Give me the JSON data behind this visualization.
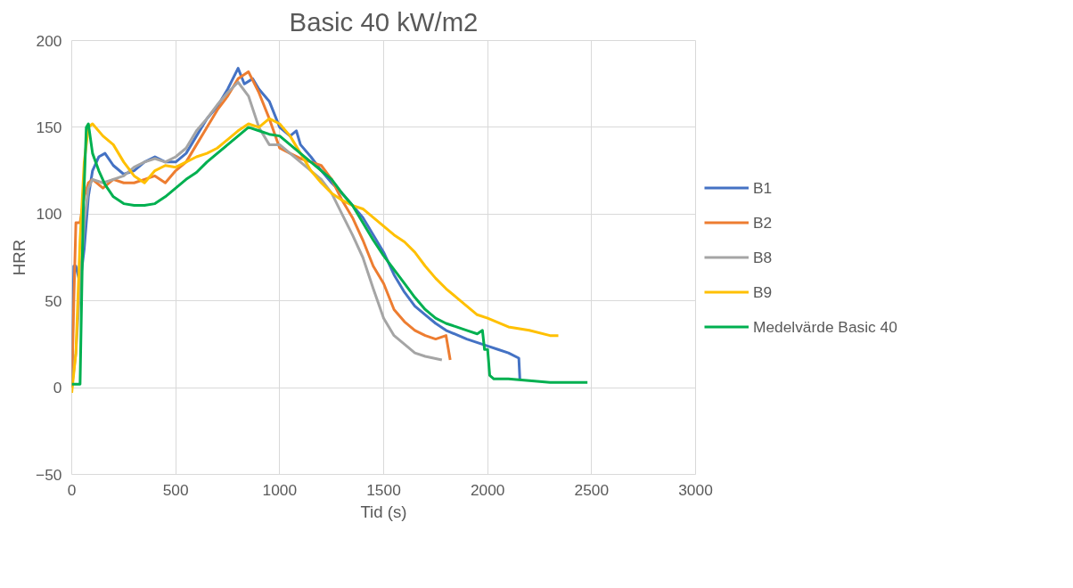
{
  "chart_data": {
    "type": "line",
    "title": "Basic 40 kW/m2",
    "xlabel": "Tid (s)",
    "ylabel": "HRR",
    "xlim": [
      0,
      3000
    ],
    "ylim": [
      -50,
      200
    ],
    "xticks": [
      0,
      500,
      1000,
      1500,
      2000,
      2500,
      3000
    ],
    "yticks": [
      -50,
      0,
      50,
      100,
      150,
      200
    ],
    "grid": true,
    "legend": "right",
    "line_style": "solid",
    "series": [
      {
        "name": "B1",
        "color": "#4472c4",
        "x": [
          0,
          10,
          20,
          40,
          60,
          80,
          100,
          130,
          160,
          200,
          250,
          300,
          350,
          400,
          450,
          500,
          550,
          600,
          650,
          700,
          750,
          800,
          830,
          870,
          900,
          950,
          1000,
          1050,
          1080,
          1100,
          1150,
          1200,
          1250,
          1300,
          1350,
          1400,
          1450,
          1500,
          1550,
          1600,
          1650,
          1700,
          1750,
          1800,
          1900,
          2000,
          2050,
          2100,
          2150,
          2155
        ],
        "values": [
          0,
          70,
          70,
          60,
          80,
          110,
          125,
          133,
          135,
          128,
          123,
          125,
          130,
          133,
          130,
          130,
          135,
          145,
          155,
          162,
          172,
          184,
          175,
          178,
          172,
          165,
          150,
          145,
          148,
          140,
          133,
          125,
          118,
          112,
          105,
          98,
          88,
          78,
          65,
          55,
          47,
          42,
          37,
          33,
          28,
          24,
          22,
          20,
          17,
          5
        ]
      },
      {
        "name": "B2",
        "color": "#ed7d31",
        "x": [
          0,
          10,
          20,
          40,
          60,
          80,
          100,
          150,
          200,
          250,
          300,
          350,
          400,
          450,
          500,
          550,
          600,
          650,
          700,
          750,
          800,
          850,
          900,
          950,
          1000,
          1050,
          1100,
          1150,
          1200,
          1250,
          1300,
          1350,
          1400,
          1450,
          1500,
          1550,
          1600,
          1650,
          1700,
          1750,
          1800,
          1820
        ],
        "values": [
          0,
          50,
          95,
          95,
          110,
          118,
          120,
          115,
          120,
          118,
          118,
          120,
          122,
          118,
          125,
          130,
          140,
          150,
          160,
          168,
          178,
          182,
          170,
          155,
          138,
          135,
          132,
          130,
          128,
          120,
          108,
          98,
          85,
          70,
          60,
          45,
          38,
          33,
          30,
          28,
          30,
          16
        ]
      },
      {
        "name": "B8",
        "color": "#a5a5a5",
        "x": [
          0,
          20,
          40,
          60,
          80,
          100,
          150,
          200,
          250,
          300,
          350,
          400,
          450,
          500,
          550,
          600,
          650,
          700,
          750,
          800,
          850,
          900,
          950,
          1000,
          1050,
          1100,
          1150,
          1200,
          1250,
          1300,
          1350,
          1400,
          1450,
          1500,
          1550,
          1600,
          1650,
          1700,
          1780
        ],
        "values": [
          0,
          20,
          60,
          95,
          115,
          120,
          118,
          120,
          122,
          127,
          130,
          132,
          130,
          133,
          138,
          148,
          155,
          163,
          170,
          176,
          168,
          150,
          140,
          140,
          135,
          130,
          125,
          120,
          112,
          100,
          88,
          75,
          57,
          40,
          30,
          25,
          20,
          18,
          16
        ]
      },
      {
        "name": "B9",
        "color": "#ffc000",
        "x": [
          0,
          20,
          40,
          60,
          80,
          100,
          150,
          200,
          250,
          300,
          350,
          400,
          450,
          500,
          550,
          600,
          650,
          700,
          750,
          800,
          850,
          900,
          950,
          1000,
          1050,
          1100,
          1150,
          1200,
          1250,
          1300,
          1350,
          1400,
          1450,
          1500,
          1550,
          1600,
          1650,
          1700,
          1750,
          1800,
          1850,
          1900,
          1950,
          2000,
          2100,
          2200,
          2300,
          2340
        ],
        "values": [
          -3,
          20,
          85,
          130,
          150,
          152,
          145,
          140,
          130,
          122,
          118,
          125,
          128,
          127,
          130,
          133,
          135,
          138,
          143,
          148,
          152,
          150,
          155,
          152,
          145,
          135,
          125,
          118,
          112,
          108,
          105,
          103,
          98,
          93,
          88,
          84,
          78,
          70,
          63,
          57,
          52,
          47,
          42,
          40,
          35,
          33,
          30,
          30
        ]
      },
      {
        "name": "Medelvärde Basic 40",
        "color": "#00b050",
        "x": [
          0,
          40,
          55,
          70,
          80,
          100,
          130,
          160,
          200,
          250,
          300,
          350,
          400,
          450,
          500,
          550,
          600,
          650,
          700,
          750,
          800,
          850,
          900,
          950,
          1000,
          1050,
          1100,
          1150,
          1200,
          1250,
          1300,
          1350,
          1400,
          1450,
          1500,
          1550,
          1600,
          1650,
          1700,
          1750,
          1800,
          1850,
          1900,
          1950,
          1975,
          1985,
          2000,
          2010,
          2030,
          2100,
          2200,
          2300,
          2400,
          2480
        ],
        "values": [
          2,
          2,
          100,
          150,
          152,
          135,
          125,
          117,
          110,
          106,
          105,
          105,
          106,
          110,
          115,
          120,
          124,
          130,
          135,
          140,
          145,
          150,
          148,
          146,
          145,
          140,
          135,
          130,
          125,
          120,
          112,
          105,
          95,
          85,
          76,
          68,
          60,
          52,
          45,
          40,
          37,
          35,
          33,
          31,
          33,
          22,
          22,
          7,
          5,
          5,
          4,
          3,
          3,
          3
        ]
      }
    ]
  }
}
